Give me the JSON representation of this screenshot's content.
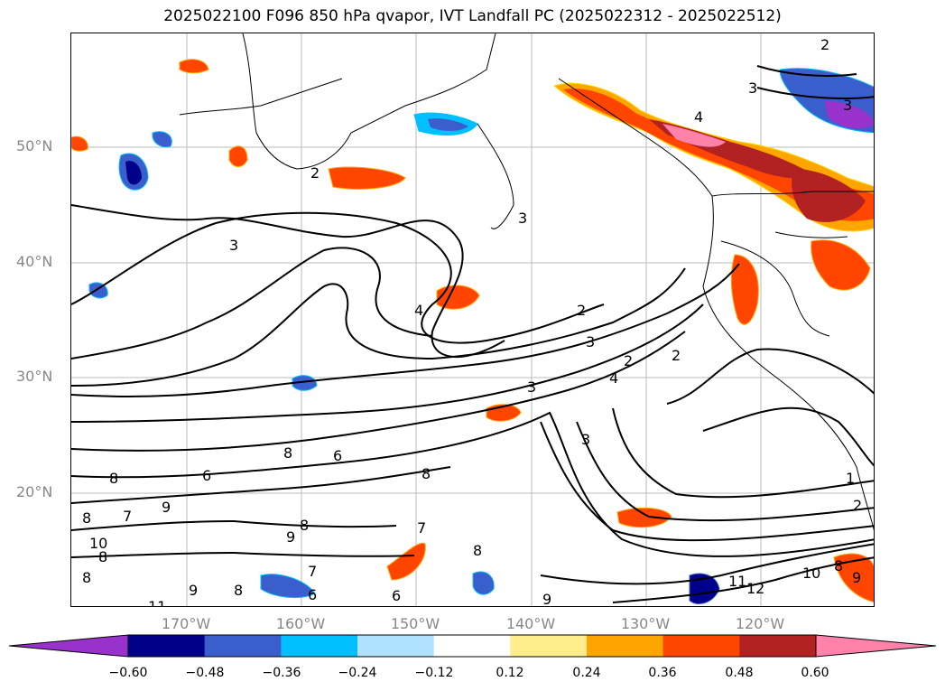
{
  "title": "2025022100 F096 850 hPa qvapor, IVT Landfall PC (2025022312 - 2025022512)",
  "lat_labels": [
    "50°N",
    "40°N",
    "30°N",
    "20°N"
  ],
  "lon_labels": [
    "170°W",
    "160°W",
    "150°W",
    "140°W",
    "130°W",
    "120°W"
  ],
  "colorbar": {
    "ticks": [
      "−0.60",
      "−0.48",
      "−0.36",
      "−0.24",
      "−0.12",
      "0.12",
      "0.24",
      "0.36",
      "0.48",
      "0.60"
    ],
    "colors": [
      "#9932cc",
      "#00008b",
      "#3a5fcd",
      "#00bfff",
      "#b0e2ff",
      "#ffffff",
      "#ffec8b",
      "#ffa500",
      "#ff4500",
      "#b22222",
      "#ff82ab"
    ]
  },
  "contour_labels": [
    "2",
    "3",
    "3",
    "4",
    "3",
    "2",
    "3",
    "4",
    "2",
    "2",
    "3",
    "2",
    "3",
    "3",
    "4",
    "1",
    "2",
    "6",
    "8",
    "8",
    "6",
    "9",
    "8",
    "7",
    "8",
    "10",
    "8",
    "9",
    "8",
    "7",
    "6",
    "9",
    "8",
    "6",
    "11",
    "10",
    "12",
    "11",
    "8",
    "9",
    "7",
    "8",
    "8",
    "9"
  ]
}
